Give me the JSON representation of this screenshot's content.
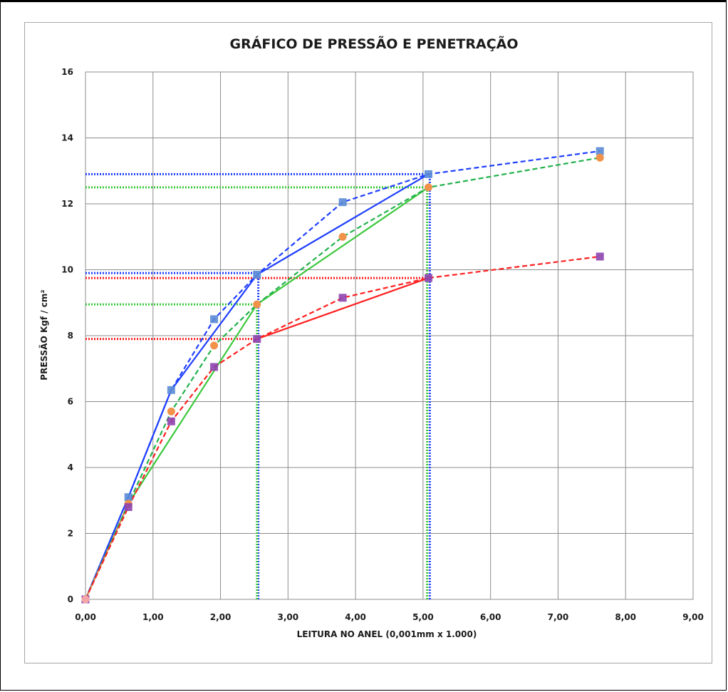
{
  "chart_data": {
    "type": "line",
    "title": "GRÁFICO DE PRESSÃO E PENETRAÇÃO",
    "xlabel": "LEITURA NO ANEL (0,001mm x 1.000)",
    "ylabel": "PRESSÃO Kgf / cm²",
    "xlim": [
      0,
      9
    ],
    "ylim": [
      0,
      16
    ],
    "x_ticks": [
      "0,00",
      "1,00",
      "2,00",
      "3,00",
      "4,00",
      "5,00",
      "6,00",
      "7,00",
      "8,00",
      "9,00"
    ],
    "y_ticks": [
      "0",
      "2",
      "4",
      "6",
      "8",
      "10",
      "12",
      "14",
      "16"
    ],
    "grid": true,
    "series": [
      {
        "style": "dashed",
        "color": "#1f3fff",
        "marker": "square",
        "marker_color": "#5b8bd6",
        "x": [
          0,
          0.635,
          1.27,
          1.905,
          2.54,
          3.81,
          5.08,
          7.62
        ],
        "y": [
          0,
          3.1,
          6.35,
          8.5,
          9.85,
          12.05,
          12.9,
          13.6
        ]
      },
      {
        "style": "dashed",
        "color": "#22b24c",
        "marker": "circle",
        "marker_color": "#f0924a",
        "x": [
          0,
          0.635,
          1.27,
          1.905,
          2.54,
          3.81,
          5.08,
          7.62
        ],
        "y": [
          0,
          2.9,
          5.7,
          7.7,
          8.95,
          11.0,
          12.5,
          13.4
        ]
      },
      {
        "style": "dashed",
        "color": "#ff2020",
        "marker": "square",
        "marker_color": "#8e44b0",
        "x": [
          0,
          0.635,
          1.27,
          1.905,
          2.54,
          3.81,
          5.08,
          7.62
        ],
        "y": [
          0,
          2.8,
          5.4,
          7.05,
          7.9,
          9.15,
          9.75,
          10.4
        ]
      },
      {
        "style": "solid",
        "color": "#1f3fff",
        "x": [
          0,
          0.635,
          1.27,
          2.54,
          5.08
        ],
        "y": [
          0,
          3.1,
          6.35,
          9.85,
          12.9
        ]
      },
      {
        "style": "solid",
        "color": "#3cc83c",
        "x": [
          0,
          0.635,
          2.54,
          5.08
        ],
        "y": [
          0,
          2.9,
          8.95,
          12.5
        ]
      },
      {
        "style": "solid",
        "color": "#ff2020",
        "x": [
          2.54,
          5.08
        ],
        "y": [
          7.9,
          9.75
        ]
      },
      {
        "style": "solid",
        "color": "#e08a4a",
        "x": [
          0,
          0.635
        ],
        "y": [
          0,
          2.9
        ]
      }
    ],
    "reference_lines": [
      {
        "color": "#1f3fff",
        "y": 12.9,
        "x_end": 5.08
      },
      {
        "color": "#1f3fff",
        "y": 9.9,
        "x_end": 2.54
      },
      {
        "color": "#3cc83c",
        "y": 12.5,
        "x_end": 5.08
      },
      {
        "color": "#3cc83c",
        "y": 8.95,
        "x_end": 2.54
      },
      {
        "color": "#ff2020",
        "y": 9.75,
        "x_end": 5.08
      },
      {
        "color": "#ff2020",
        "y": 7.9,
        "x_end": 2.54
      }
    ],
    "vertical_reference_lines": [
      {
        "color": "#1f3fff",
        "x": 2.56,
        "y_end": 9.85
      },
      {
        "color": "#3cc83c",
        "x": 2.54,
        "y_end": 8.95
      },
      {
        "color": "#1f3fff",
        "x": 5.1,
        "y_end": 12.9
      },
      {
        "color": "#3cc83c",
        "x": 5.06,
        "y_end": 12.5
      }
    ]
  }
}
